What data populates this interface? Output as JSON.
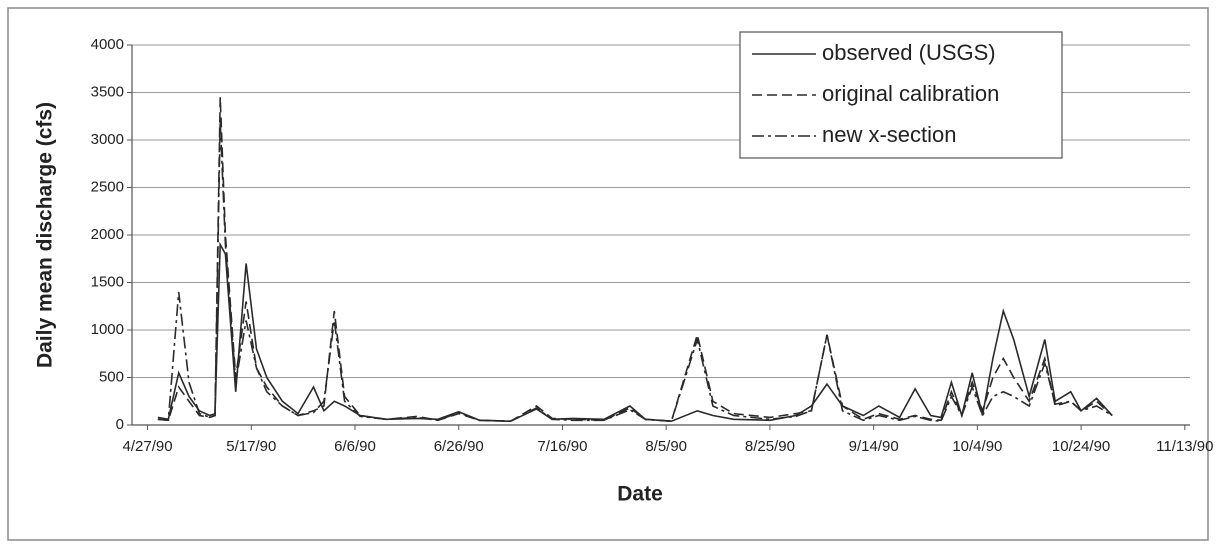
{
  "chart_data": {
    "type": "line",
    "xlabel": "Date",
    "ylabel": "Daily mean discharge (cfs)",
    "x": [
      "4/29/90",
      "5/1/90",
      "5/3/90",
      "5/5/90",
      "5/7/90",
      "5/9/90",
      "5/10/90",
      "5/11/90",
      "5/12/90",
      "5/14/90",
      "5/16/90",
      "5/18/90",
      "5/20/90",
      "5/23/90",
      "5/26/90",
      "5/29/90",
      "5/31/90",
      "6/2/90",
      "6/4/90",
      "6/7/90",
      "6/12/90",
      "6/18/90",
      "6/22/90",
      "6/26/90",
      "6/30/90",
      "7/6/90",
      "7/11/90",
      "7/14/90",
      "7/18/90",
      "7/24/90",
      "7/29/90",
      "8/1/90",
      "8/6/90",
      "8/11/90",
      "8/14/90",
      "8/18/90",
      "8/25/90",
      "8/30/90",
      "9/2/90",
      "9/5/90",
      "9/8/90",
      "9/12/90",
      "9/15/90",
      "9/19/90",
      "9/22/90",
      "9/25/90",
      "9/27/90",
      "9/29/90",
      "10/1/90",
      "10/3/90",
      "10/5/90",
      "10/7/90",
      "10/9/90",
      "10/11/90",
      "10/14/90",
      "10/17/90",
      "10/19/90",
      "10/22/90",
      "10/24/90",
      "10/27/90",
      "10/30/90"
    ],
    "series": [
      {
        "name": "observed (USGS)",
        "color": "#2a2a2a",
        "dash": "solid",
        "values": [
          80,
          60,
          550,
          300,
          150,
          100,
          120,
          1900,
          1800,
          350,
          1700,
          800,
          500,
          250,
          120,
          400,
          150,
          250,
          200,
          100,
          60,
          70,
          60,
          140,
          50,
          40,
          170,
          60,
          70,
          60,
          200,
          60,
          40,
          150,
          100,
          60,
          50,
          100,
          200,
          430,
          200,
          100,
          200,
          80,
          380,
          100,
          80,
          450,
          100,
          550,
          100,
          700,
          1200,
          900,
          300,
          900,
          250,
          350,
          150,
          280,
          100
        ]
      },
      {
        "name": "original calibration",
        "color": "#2a2a2a",
        "dash": "dashed",
        "values": [
          60,
          50,
          400,
          250,
          100,
          80,
          100,
          3450,
          2000,
          500,
          1300,
          600,
          400,
          200,
          100,
          150,
          200,
          1200,
          300,
          100,
          60,
          90,
          50,
          120,
          50,
          40,
          200,
          70,
          60,
          50,
          180,
          60,
          40,
          950,
          250,
          120,
          80,
          120,
          150,
          950,
          200,
          60,
          120,
          60,
          100,
          60,
          50,
          350,
          100,
          450,
          150,
          500,
          700,
          500,
          250,
          700,
          200,
          250,
          150,
          250,
          100
        ]
      },
      {
        "name": "new x-section",
        "color": "#2a2a2a",
        "dash": "dashdot",
        "values": [
          60,
          50,
          1400,
          450,
          120,
          80,
          100,
          3200,
          1900,
          450,
          1100,
          600,
          350,
          200,
          100,
          130,
          250,
          1100,
          250,
          90,
          60,
          80,
          50,
          130,
          50,
          40,
          180,
          60,
          50,
          50,
          160,
          60,
          40,
          900,
          200,
          100,
          60,
          90,
          150,
          950,
          150,
          50,
          100,
          50,
          90,
          50,
          40,
          300,
          100,
          400,
          100,
          300,
          350,
          300,
          200,
          650,
          220,
          250,
          150,
          200,
          100
        ]
      }
    ],
    "xlim": [
      "4/24/90",
      "11/14/90"
    ],
    "xticks": [
      "4/27/90",
      "5/17/90",
      "6/6/90",
      "6/26/90",
      "7/16/90",
      "8/5/90",
      "8/25/90",
      "9/14/90",
      "10/4/90",
      "10/24/90",
      "11/13/90"
    ],
    "ylim": [
      0,
      4000
    ],
    "yticks": [
      0,
      500,
      1000,
      1500,
      2000,
      2500,
      3000,
      3500,
      4000
    ],
    "grid": true,
    "legend": "top-right"
  }
}
